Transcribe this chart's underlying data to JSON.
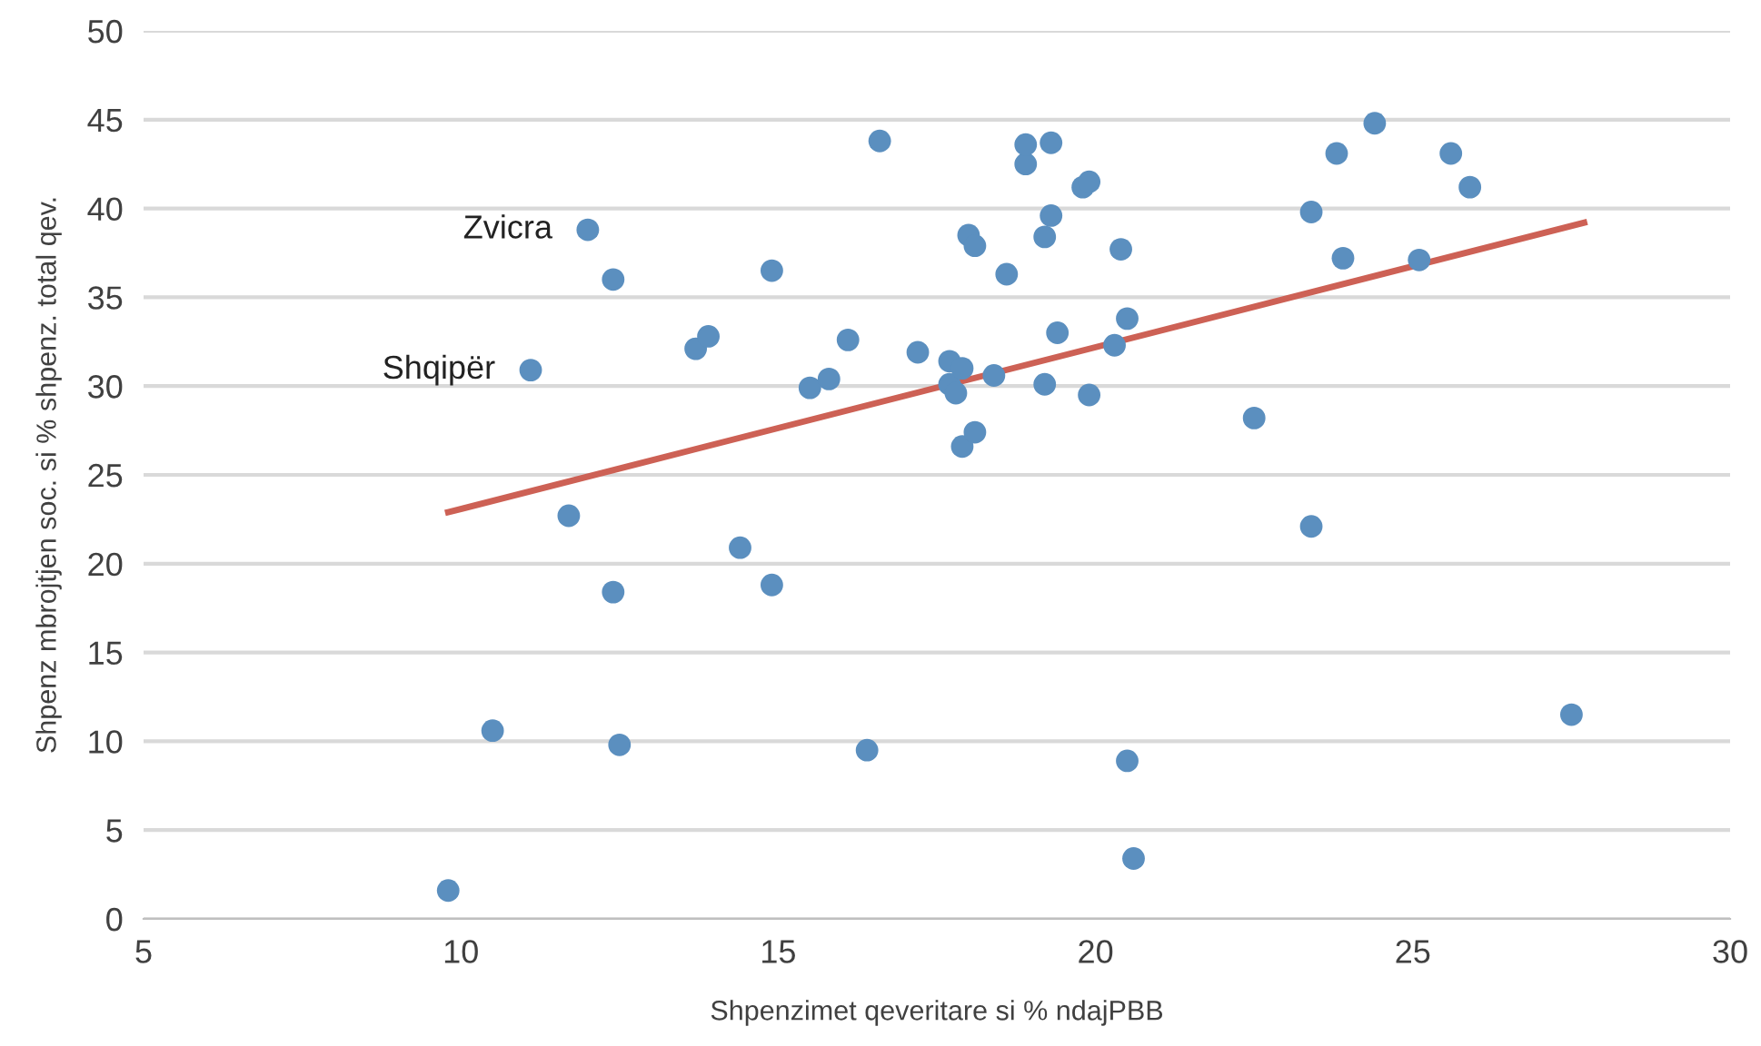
{
  "chart_data": {
    "type": "scatter",
    "xlabel": "Shpenzimet qeveritare si % ndajPBB",
    "ylabel": "Shpenz mbrojtjen soc. si % shpenz. total qev.",
    "xlim": [
      5,
      30
    ],
    "xticks": [
      5,
      10,
      15,
      20,
      25,
      30
    ],
    "ylim": [
      0,
      50
    ],
    "yticks": [
      0,
      5,
      10,
      15,
      20,
      25,
      30,
      35,
      40,
      45,
      50
    ],
    "grid": "y",
    "series": [
      {
        "color": "#5b8fbf",
        "marker": "circle",
        "x": [
          9.8,
          10.5,
          11.1,
          11.7,
          12.0,
          12.4,
          12.4,
          12.5,
          13.7,
          13.9,
          14.4,
          14.9,
          14.9,
          15.5,
          15.8,
          16.1,
          16.4,
          16.6,
          17.2,
          17.7,
          17.7,
          17.8,
          17.9,
          17.9,
          18.0,
          18.1,
          18.1,
          18.4,
          18.6,
          18.9,
          18.9,
          19.2,
          19.2,
          19.3,
          19.3,
          19.4,
          19.8,
          19.9,
          19.9,
          20.3,
          20.4,
          20.5,
          20.5,
          20.6,
          22.5,
          23.4,
          23.4,
          23.8,
          23.9,
          24.4,
          25.1,
          25.6,
          25.9,
          27.5
        ],
        "values": [
          1.6,
          10.6,
          30.9,
          22.7,
          38.8,
          36.0,
          18.4,
          9.8,
          32.1,
          32.8,
          20.9,
          36.5,
          18.8,
          29.9,
          30.4,
          32.6,
          9.5,
          43.8,
          31.9,
          31.4,
          30.1,
          29.6,
          31.0,
          26.6,
          38.5,
          37.9,
          27.4,
          30.6,
          36.3,
          42.5,
          43.6,
          38.4,
          30.1,
          43.7,
          39.6,
          33.0,
          41.2,
          41.5,
          29.5,
          32.3,
          37.7,
          8.9,
          33.8,
          3.4,
          28.2,
          39.8,
          22.1,
          43.1,
          37.2,
          44.8,
          37.1,
          43.1,
          41.2,
          11.5
        ]
      },
      {
        "type": "line",
        "color": "#cd6155",
        "x": [
          9.8,
          27.7
        ],
        "values": [
          22.9,
          39.2
        ]
      }
    ],
    "annotations": [
      {
        "text": "Zvicra",
        "x": 12.0,
        "y": 38.8
      },
      {
        "text": "Shqipër",
        "x": 11.1,
        "y": 30.9
      }
    ]
  }
}
